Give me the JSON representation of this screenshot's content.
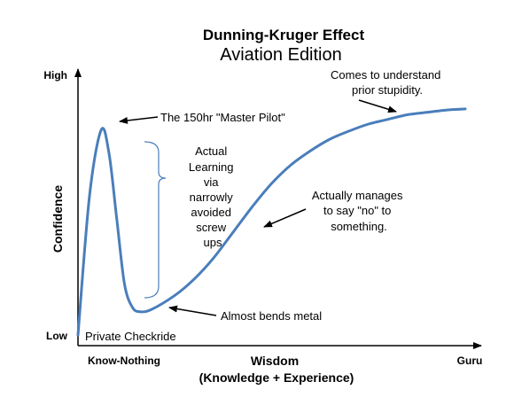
{
  "chart_data": {
    "type": "line",
    "title": "Dunning-Kruger Effect",
    "subtitle": "Aviation Edition",
    "xlabel": "Wisdom",
    "xlabel_sub": "(Knowledge  +  Experience)",
    "ylabel": "Confidence",
    "x_ticks": [
      "Know-Nothing",
      "Guru"
    ],
    "y_ticks": [
      "Low",
      "High"
    ],
    "xlim": [
      0,
      100
    ],
    "ylim": [
      0,
      100
    ],
    "grid": false,
    "legend": "none",
    "line_color": "#4a7ebb",
    "series": [
      {
        "x": [
          0,
          3,
          6,
          8,
          10,
          12,
          14,
          16,
          19,
          25,
          30,
          35,
          40,
          45,
          50,
          55,
          60,
          65,
          70,
          75,
          80,
          85,
          90,
          95,
          100
        ],
        "y": [
          0,
          60,
          88,
          78,
          50,
          22,
          12,
          10,
          11,
          17,
          24,
          33,
          44,
          55,
          65,
          73,
          79,
          84,
          87.5,
          90.5,
          92.5,
          94.5,
          95.5,
          96.5,
          97
        ]
      }
    ],
    "brace_color": "#4a7ebb"
  },
  "annotations": {
    "peak": "The 150hr \"Master Pilot\"",
    "learning": [
      "Actual",
      "Learning",
      "via",
      "narrowly",
      "avoided",
      "screw",
      "ups"
    ],
    "valley": "Almost bends metal",
    "origin": "Private Checkride",
    "manages": [
      "Actually manages",
      "to say \"no\" to",
      "something."
    ],
    "stupidity": [
      "Comes to understand",
      "prior stupidity."
    ]
  }
}
